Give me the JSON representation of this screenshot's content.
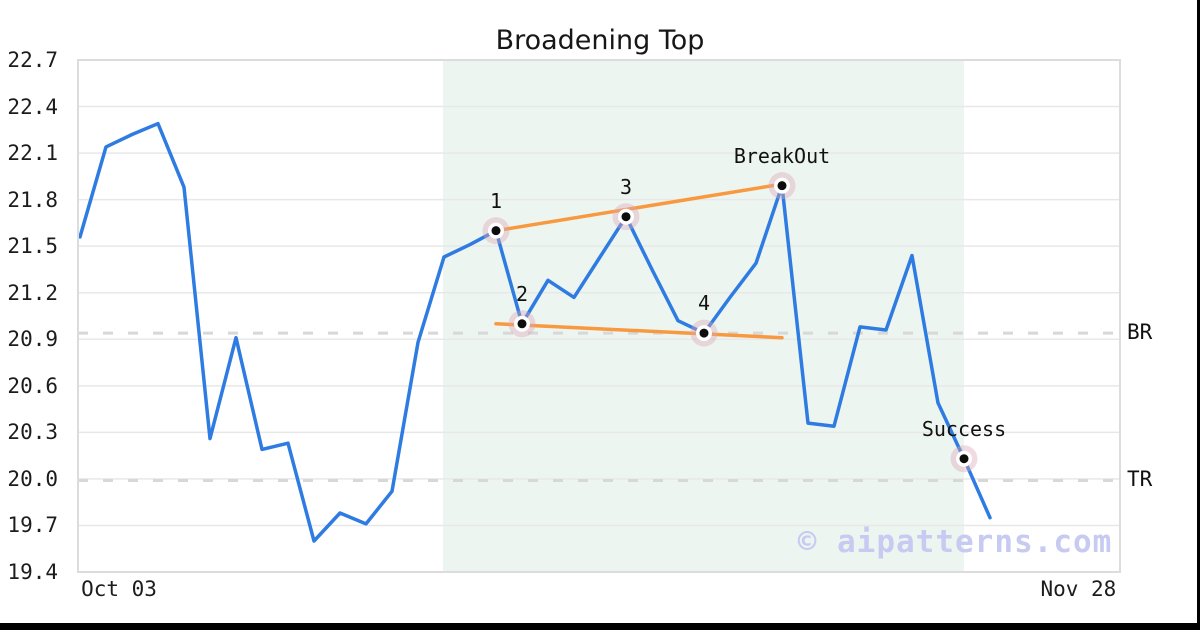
{
  "chart_data": {
    "type": "line",
    "title": "Broadening Top",
    "watermark": "© aipatterns.com",
    "ylim": [
      19.4,
      22.7
    ],
    "grid": true,
    "y_ticks": [
      "22.7",
      "22.4",
      "22.1",
      "21.8",
      "21.5",
      "21.2",
      "20.9",
      "20.6",
      "20.3",
      "20.0",
      "19.7",
      "19.4"
    ],
    "x_ticks": [
      {
        "label": "Oct 03",
        "index": 1.5
      },
      {
        "label": "Nov 28",
        "index": 38.4
      }
    ],
    "series": {
      "name": "price",
      "color": "#2e7ce2",
      "values": [
        21.56,
        22.14,
        22.22,
        22.29,
        21.88,
        20.26,
        20.91,
        20.19,
        20.23,
        19.6,
        19.78,
        19.71,
        19.92,
        20.88,
        21.43,
        21.51,
        21.6,
        21.0,
        21.28,
        21.17,
        21.43,
        21.69,
        21.35,
        21.02,
        20.94,
        21.17,
        21.39,
        21.89,
        20.36,
        20.34,
        20.98,
        20.96,
        21.44,
        20.49,
        20.13,
        19.75
      ]
    },
    "pattern_region": {
      "from_index": 13.96,
      "to_index": 34,
      "color": "#edf5f1"
    },
    "trendlines": [
      {
        "name": "upper",
        "from_index": 16,
        "from_value": 21.6,
        "to_index": 27,
        "to_value": 21.9,
        "color": "#f8993f"
      },
      {
        "name": "lower",
        "from_index": 16,
        "from_value": 21.0,
        "to_index": 27,
        "to_value": 20.91,
        "color": "#f8993f"
      }
    ],
    "levels": [
      {
        "label": "BR",
        "value": 20.94
      },
      {
        "label": "TR",
        "value": 19.99
      }
    ],
    "annotations": [
      {
        "label": "1",
        "index": 16,
        "value": 21.6
      },
      {
        "label": "2",
        "index": 17,
        "value": 21.0
      },
      {
        "label": "3",
        "index": 21,
        "value": 21.69
      },
      {
        "label": "4",
        "index": 24,
        "value": 20.94
      },
      {
        "label": "BreakOut",
        "index": 27,
        "value": 21.89
      },
      {
        "label": "Success",
        "index": 34,
        "value": 20.13
      }
    ],
    "marker_style": {
      "halo_color": "rgba(219,166,182,0.40)",
      "ring_color": "#ffffff",
      "dot_color": "#0d0d0d"
    },
    "colors": {
      "grid": "#e8e8e8",
      "border": "#dcdcdc",
      "dashed_level": "#d8d8d8",
      "text": "#1c1c1c"
    }
  }
}
